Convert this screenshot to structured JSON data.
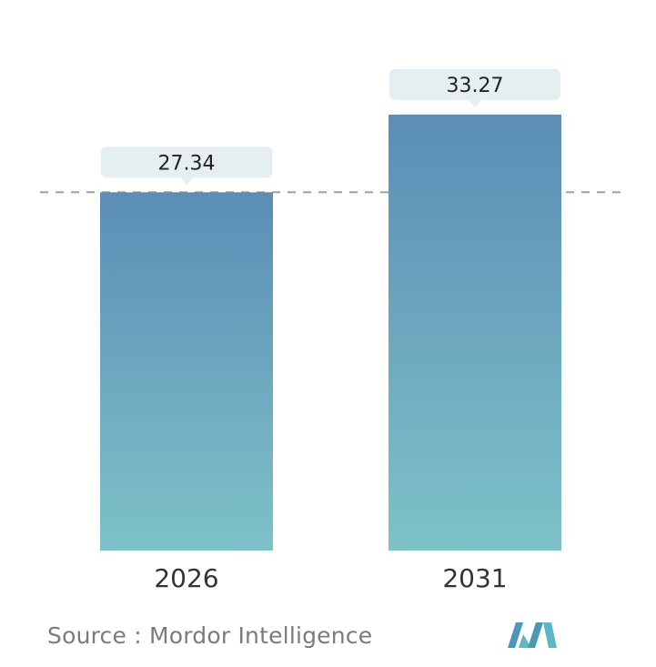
{
  "chart_data": {
    "type": "bar",
    "categories": [
      "2026",
      "2031"
    ],
    "values": [
      27.34,
      33.27
    ],
    "value_labels": [
      "27.34",
      "33.27"
    ],
    "title": "",
    "xlabel": "",
    "ylabel": "",
    "grid": false,
    "reference_line": {
      "value": 27.34,
      "style": "dashed"
    },
    "colors": {
      "bar_top": "#5b8db6",
      "bar_bottom": "#7ec2c8",
      "label_box": "#e5eef0",
      "label_text": "#222222",
      "axis_text": "#333333",
      "dashed_line": "#8fa6b5"
    }
  },
  "footer": {
    "source_text": "Source :  Mordor Intelligence"
  },
  "logo": {
    "icon": "mordor-intelligence-logo-icon",
    "colors": [
      "#4a98b8",
      "#5bb8c4"
    ]
  }
}
